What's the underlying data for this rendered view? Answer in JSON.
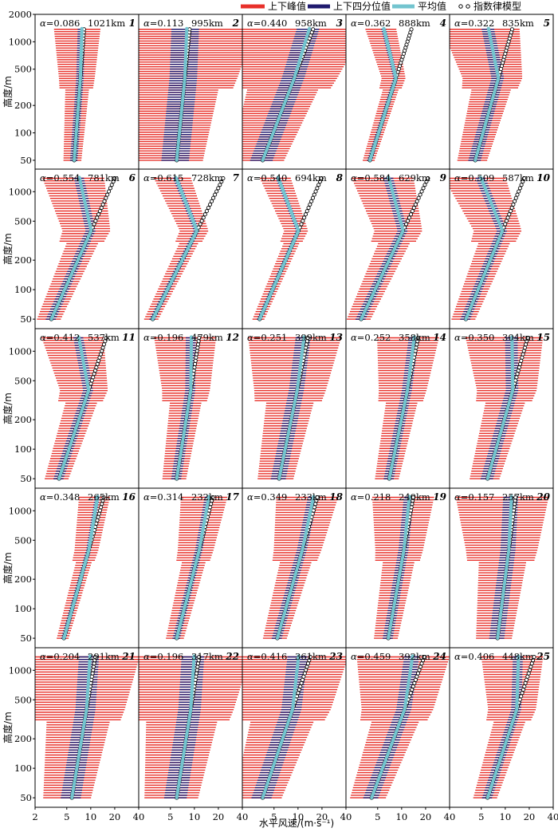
{
  "chart_data": {
    "type": "line",
    "legend": {
      "placement": "top-right",
      "items": [
        {
          "key": "peak",
          "label": "上下峰值",
          "color": "#e8302a"
        },
        {
          "key": "quartile",
          "label": "上下四分位值",
          "color": "#1f1a6e"
        },
        {
          "key": "mean",
          "label": "平均值",
          "color": "#73c4cf"
        },
        {
          "key": "model",
          "label": "指数律模型",
          "color": "#000000"
        }
      ]
    },
    "ylabel": "高度/m",
    "xlabel": "水平风速/(m·s⁻¹)",
    "y_scale": "log",
    "ylim": [
      40,
      2000
    ],
    "y_ticks": [
      50,
      100,
      200,
      500,
      1000,
      2000
    ],
    "y_tick_labels": [
      "50",
      "100",
      "200",
      "500",
      "1000",
      "2000"
    ],
    "x_scale": "log",
    "xlim": [
      2,
      40
    ],
    "x_ticks": [
      2,
      5,
      10,
      20,
      40
    ],
    "x_tick_labels": [
      "2",
      "5",
      "10",
      "20",
      "40"
    ],
    "heights": [
      50,
      75,
      100,
      150,
      200,
      300,
      400,
      500,
      600,
      700,
      800,
      900,
      1000,
      1100,
      1200,
      1300,
      1400
    ],
    "alpha_prefix": "α=",
    "panels": [
      {
        "id": "1",
        "alpha": "0.086",
        "dist": "1021km",
        "ref": 6.2,
        "alpha_v": 0.086,
        "spread": 0.15,
        "upper": "flat",
        "dev": 0.05
      },
      {
        "id": "2",
        "alpha": "0.113",
        "dist": "995km",
        "ref": 6.0,
        "alpha_v": 0.113,
        "spread": 0.55,
        "upper": "flat",
        "dev": 0.0
      },
      {
        "id": "3",
        "alpha": "0.440",
        "dist": "958km",
        "ref": 3.6,
        "alpha_v": 0.44,
        "spread": 0.45,
        "upper": "follow",
        "dev": -0.05
      },
      {
        "id": "4",
        "alpha": "0.362",
        "dist": "888km",
        "ref": 4.0,
        "alpha_v": 0.362,
        "spread": 0.1,
        "upper": "bend",
        "dev": -0.35
      },
      {
        "id": "5",
        "alpha": "0.322",
        "dist": "835km",
        "ref": 4.2,
        "alpha_v": 0.322,
        "spread": 0.25,
        "upper": "bend",
        "dev": -0.3
      },
      {
        "id": "6",
        "alpha": "0.554",
        "dist": "781km",
        "ref": 3.2,
        "alpha_v": 0.554,
        "spread": 0.2,
        "upper": "bend",
        "dev": -0.45
      },
      {
        "id": "7",
        "alpha": "0.615",
        "dist": "728km",
        "ref": 3.0,
        "alpha_v": 0.615,
        "spread": 0.12,
        "upper": "bend",
        "dev": -0.6
      },
      {
        "id": "8",
        "alpha": "0.540",
        "dist": "694km",
        "ref": 3.3,
        "alpha_v": 0.54,
        "spread": 0.1,
        "upper": "bend",
        "dev": -0.55
      },
      {
        "id": "9",
        "alpha": "0.584",
        "dist": "629km",
        "ref": 3.1,
        "alpha_v": 0.584,
        "spread": 0.2,
        "upper": "bend",
        "dev": -0.5
      },
      {
        "id": "10",
        "alpha": "0.509",
        "dist": "587km",
        "ref": 3.2,
        "alpha_v": 0.509,
        "spread": 0.2,
        "upper": "bend",
        "dev": -0.55
      },
      {
        "id": "11",
        "alpha": "0.412",
        "dist": "537km",
        "ref": 4.0,
        "alpha_v": 0.412,
        "spread": 0.2,
        "upper": "bend",
        "dev": -0.35
      },
      {
        "id": "12",
        "alpha": "0.196",
        "dist": "479km",
        "ref": 6.0,
        "alpha_v": 0.196,
        "spread": 0.2,
        "upper": "bend",
        "dev": -0.1
      },
      {
        "id": "13",
        "alpha": "0.251",
        "dist": "399km",
        "ref": 5.8,
        "alpha_v": 0.251,
        "spread": 0.3,
        "upper": "follow",
        "dev": -0.05
      },
      {
        "id": "14",
        "alpha": "0.252",
        "dist": "358km",
        "ref": 7.0,
        "alpha_v": 0.252,
        "spread": 0.2,
        "upper": "follow",
        "dev": -0.05
      },
      {
        "id": "15",
        "alpha": "0.350",
        "dist": "304km",
        "ref": 6.0,
        "alpha_v": 0.35,
        "spread": 0.25,
        "upper": "bend",
        "dev": -0.2
      },
      {
        "id": "16",
        "alpha": "0.348",
        "dist": "265km",
        "ref": 4.6,
        "alpha_v": 0.348,
        "spread": 0.1,
        "upper": "follow",
        "dev": -0.08
      },
      {
        "id": "17",
        "alpha": "0.314",
        "dist": "232km",
        "ref": 6.0,
        "alpha_v": 0.314,
        "spread": 0.15,
        "upper": "follow",
        "dev": -0.05
      },
      {
        "id": "18",
        "alpha": "0.349",
        "dist": "233km",
        "ref": 5.5,
        "alpha_v": 0.349,
        "spread": 0.2,
        "upper": "follow",
        "dev": -0.05
      },
      {
        "id": "19",
        "alpha": "0.218",
        "dist": "240km",
        "ref": 6.8,
        "alpha_v": 0.218,
        "spread": 0.2,
        "upper": "follow",
        "dev": -0.05
      },
      {
        "id": "20",
        "alpha": "0.157",
        "dist": "257km",
        "ref": 8.0,
        "alpha_v": 0.157,
        "spread": 0.3,
        "upper": "flat",
        "dev": 0.0
      },
      {
        "id": "21",
        "alpha": "0.204",
        "dist": "291km",
        "ref": 5.8,
        "alpha_v": 0.204,
        "spread": 0.4,
        "upper": "flat",
        "dev": 0.0
      },
      {
        "id": "22",
        "alpha": "0.196",
        "dist": "317km",
        "ref": 6.0,
        "alpha_v": 0.196,
        "spread": 0.45,
        "upper": "flat",
        "dev": 0.0
      },
      {
        "id": "23",
        "alpha": "0.416",
        "dist": "361km",
        "ref": 3.6,
        "alpha_v": 0.416,
        "spread": 0.4,
        "upper": "bend",
        "dev": -0.15
      },
      {
        "id": "24",
        "alpha": "0.459",
        "dist": "392km",
        "ref": 4.2,
        "alpha_v": 0.459,
        "spread": 0.3,
        "upper": "flat",
        "dev": 0.0
      },
      {
        "id": "25",
        "alpha": "0.406",
        "dist": "448km",
        "ref": 6.0,
        "alpha_v": 0.406,
        "spread": 0.2,
        "upper": "bend",
        "dev": -0.2
      }
    ]
  }
}
